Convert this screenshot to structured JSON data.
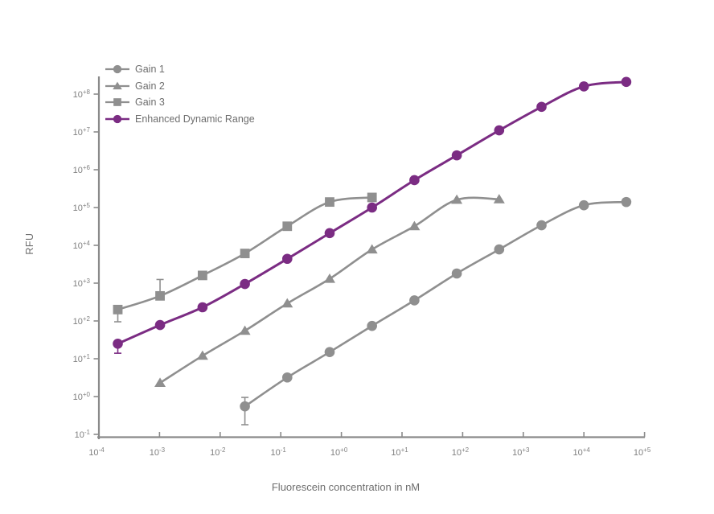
{
  "chart_data": {
    "type": "line",
    "title": "",
    "xlabel": "Fluorescein concentration in nM",
    "ylabel": "RFU",
    "x_scale": "log",
    "y_scale": "log",
    "xlim": [
      0.0001,
      100000
    ],
    "ylim": [
      0.1,
      300000000
    ],
    "grid": false,
    "legend_position": "upper-left",
    "x_tick_labels": [
      "-4",
      "-3",
      "-2",
      "-1",
      "+0",
      "+1",
      "+2",
      "+3",
      "+4",
      "+5"
    ],
    "y_tick_labels": [
      "-1",
      "+0",
      "+1",
      "+2",
      "+3",
      "+4",
      "+5",
      "+6",
      "+7",
      "+8"
    ],
    "colors": {
      "axis": "#8a8a8a",
      "tick_text": "#808080",
      "label_text": "#6e6e6e",
      "gray_series": "#8f8f8f",
      "purple_series": "#7b2c83"
    },
    "series": [
      {
        "name": "Gain 1",
        "marker": "circle",
        "color": "#8f8f8f",
        "points": [
          {
            "x": 0.0256,
            "y": 0.55,
            "err_lo": 0.18,
            "err_hi": 0.95
          },
          {
            "x": 0.128,
            "y": 3.2
          },
          {
            "x": 0.64,
            "y": 15
          },
          {
            "x": 3.2,
            "y": 74
          },
          {
            "x": 16,
            "y": 350
          },
          {
            "x": 80,
            "y": 1800
          },
          {
            "x": 400,
            "y": 7800
          },
          {
            "x": 2000,
            "y": 34000
          },
          {
            "x": 10000,
            "y": 115000
          },
          {
            "x": 50000,
            "y": 140000
          }
        ]
      },
      {
        "name": "Gain 2",
        "marker": "triangle",
        "color": "#8f8f8f",
        "points": [
          {
            "x": 0.00102,
            "y": 2.3
          },
          {
            "x": 0.00512,
            "y": 12
          },
          {
            "x": 0.0256,
            "y": 55
          },
          {
            "x": 0.128,
            "y": 290
          },
          {
            "x": 0.64,
            "y": 1300
          },
          {
            "x": 3.2,
            "y": 7800
          },
          {
            "x": 16,
            "y": 32000
          },
          {
            "x": 80,
            "y": 160000
          },
          {
            "x": 400,
            "y": 165000
          }
        ]
      },
      {
        "name": "Gain 3",
        "marker": "square",
        "color": "#8f8f8f",
        "points": [
          {
            "x": 0.000205,
            "y": 200,
            "err_lo": 95
          },
          {
            "x": 0.00102,
            "y": 460,
            "err_hi": 1250
          },
          {
            "x": 0.00512,
            "y": 1600
          },
          {
            "x": 0.0256,
            "y": 6100
          },
          {
            "x": 0.128,
            "y": 32000
          },
          {
            "x": 0.64,
            "y": 140000
          },
          {
            "x": 3.2,
            "y": 185000
          }
        ]
      },
      {
        "name": "Enhanced Dynamic Range",
        "marker": "circle",
        "color": "#7b2c83",
        "points": [
          {
            "x": 0.000205,
            "y": 25,
            "err_lo": 14
          },
          {
            "x": 0.00102,
            "y": 78
          },
          {
            "x": 0.00512,
            "y": 230
          },
          {
            "x": 0.0256,
            "y": 950
          },
          {
            "x": 0.128,
            "y": 4400
          },
          {
            "x": 0.64,
            "y": 21000
          },
          {
            "x": 3.2,
            "y": 100000
          },
          {
            "x": 16,
            "y": 530000
          },
          {
            "x": 80,
            "y": 2400000
          },
          {
            "x": 400,
            "y": 11000000
          },
          {
            "x": 2000,
            "y": 46000000
          },
          {
            "x": 10000,
            "y": 160000000
          },
          {
            "x": 50000,
            "y": 210000000
          }
        ]
      }
    ]
  }
}
